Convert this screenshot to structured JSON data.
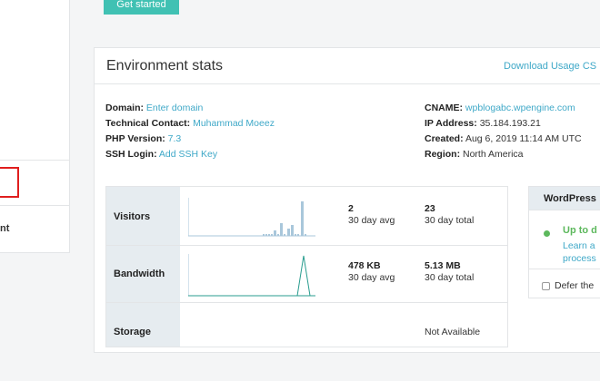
{
  "sidebar": {
    "partial_item_label": "nt"
  },
  "actions": {
    "get_started": "Get started"
  },
  "card": {
    "title": "Environment stats",
    "download_link": "Download Usage CS"
  },
  "info_left": {
    "domain_label": "Domain:",
    "domain_value": "Enter domain",
    "tech_label": "Technical Contact:",
    "tech_value": "Muhammad Moeez",
    "php_label": "PHP Version:",
    "php_value": "7.3",
    "ssh_label": "SSH Login:",
    "ssh_value": "Add SSH Key"
  },
  "info_right": {
    "cname_label": "CNAME:",
    "cname_value": "wpblogabc.wpengine.com",
    "ip_label": "IP Address:",
    "ip_value": "35.184.193.21",
    "created_label": "Created:",
    "created_value": "Aug 6, 2019 11:14 AM UTC",
    "region_label": "Region:",
    "region_value": "North America"
  },
  "stats": {
    "visitors": {
      "label": "Visitors",
      "avg_value": "2",
      "avg_label": "30 day avg",
      "total_value": "23",
      "total_label": "30 day total"
    },
    "bandwidth": {
      "label": "Bandwidth",
      "avg_value": "478 KB",
      "avg_label": "30 day avg",
      "total_value": "5.13 MB",
      "total_label": "30 day total"
    },
    "storage": {
      "label": "Storage",
      "value": "Not Available"
    }
  },
  "wordpress": {
    "title": "WordPress",
    "status": "Up to d",
    "learn_line1": "Learn a",
    "learn_line2": "process",
    "defer_label": "Defer the"
  },
  "colors": {
    "accent": "#40c1b3",
    "link": "#40a9c8",
    "spark_bar": "#a9c7db",
    "spark_line": "#2a9d8f",
    "status_ok": "#5cb85c",
    "highlight": "#e01e1e"
  }
}
